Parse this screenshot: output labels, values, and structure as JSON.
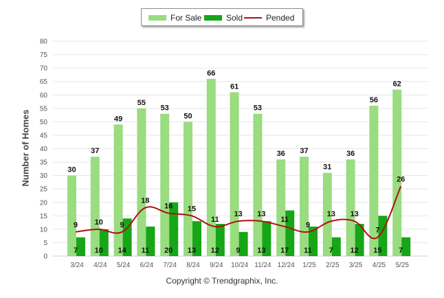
{
  "legend": {
    "for_sale": "For Sale",
    "sold": "Sold",
    "pended": "Pended"
  },
  "footer": {
    "copyright": "Copyright © Trendgraphix, Inc."
  },
  "colors": {
    "for_sale": "#9adc80",
    "sold": "#17a617",
    "pended": "#b01010",
    "grid": "#e6e6e6",
    "axis_text": "#555555"
  },
  "chart_data": {
    "type": "bar",
    "title": "",
    "xlabel": "",
    "ylabel": "Number of Homes",
    "ylim": [
      0,
      80
    ],
    "yticks": [
      0,
      5,
      10,
      15,
      20,
      25,
      30,
      35,
      40,
      45,
      50,
      55,
      60,
      65,
      70,
      75,
      80
    ],
    "grid": true,
    "legend_position": "top-center",
    "categories": [
      "3/24",
      "4/24",
      "5/24",
      "6/24",
      "7/24",
      "8/24",
      "9/24",
      "10/24",
      "11/24",
      "12/24",
      "1/25",
      "2/25",
      "3/25",
      "4/25",
      "5/25"
    ],
    "series": [
      {
        "name": "For Sale",
        "type": "bar",
        "values": [
          30,
          37,
          49,
          55,
          53,
          50,
          66,
          61,
          53,
          36,
          37,
          31,
          36,
          56,
          62
        ]
      },
      {
        "name": "Sold",
        "type": "bar",
        "values": [
          7,
          10,
          14,
          11,
          20,
          13,
          12,
          9,
          13,
          17,
          11,
          7,
          12,
          15,
          7
        ]
      },
      {
        "name": "Pended",
        "type": "line",
        "values": [
          9,
          10,
          9,
          18,
          16,
          15,
          11,
          13,
          13,
          11,
          9,
          13,
          13,
          7,
          26
        ]
      }
    ]
  }
}
